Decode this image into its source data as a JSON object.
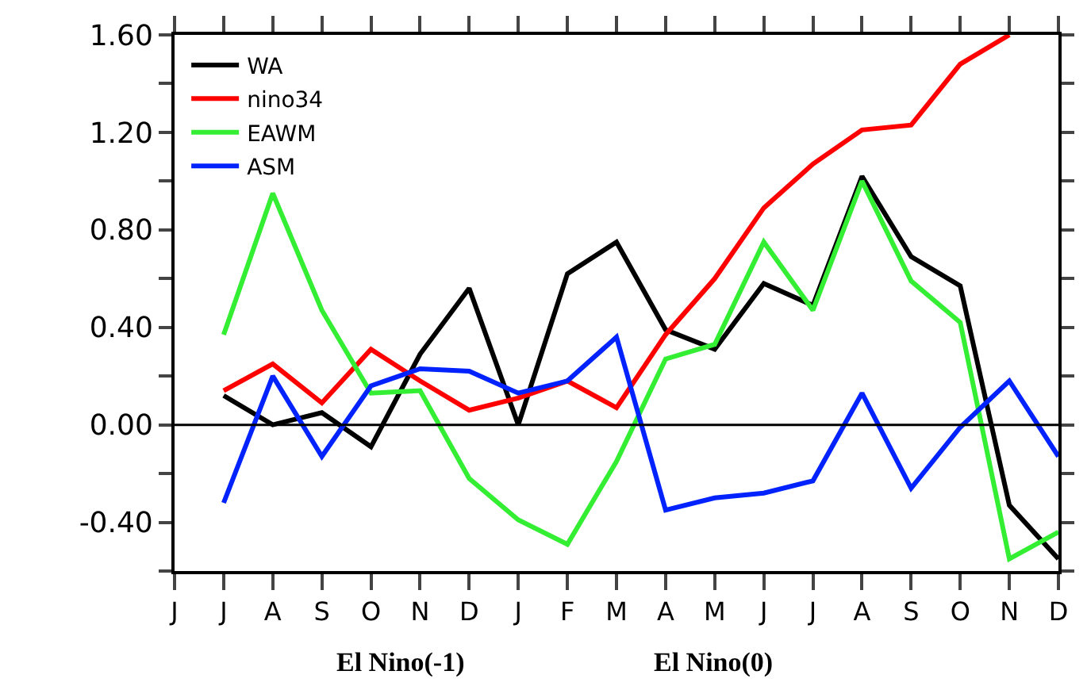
{
  "chart_data": {
    "type": "line",
    "categories": [
      "J",
      "J",
      "A",
      "S",
      "O",
      "N",
      "D",
      "J",
      "F",
      "M",
      "A",
      "M",
      "J",
      "J",
      "A",
      "S",
      "O",
      "N",
      "D"
    ],
    "series": [
      {
        "name": "WA",
        "color": "#000000",
        "values": [
          null,
          0.12,
          0.0,
          0.05,
          -0.09,
          0.29,
          0.56,
          0.0,
          0.62,
          0.75,
          0.39,
          0.31,
          0.58,
          0.49,
          1.02,
          0.69,
          0.57,
          -0.33,
          -0.55
        ]
      },
      {
        "name": "nino34",
        "color": "#ff0000",
        "values": [
          null,
          0.14,
          0.25,
          0.09,
          0.31,
          0.18,
          0.06,
          0.11,
          0.18,
          0.07,
          0.37,
          0.6,
          0.89,
          1.07,
          1.21,
          1.23,
          1.48,
          1.6,
          null
        ]
      },
      {
        "name": "EAWM",
        "color": "#33ee33",
        "values": [
          null,
          0.37,
          0.95,
          0.47,
          0.13,
          0.14,
          -0.22,
          -0.39,
          -0.49,
          -0.15,
          0.27,
          0.33,
          0.75,
          0.47,
          1.0,
          0.59,
          0.42,
          -0.55,
          -0.44
        ]
      },
      {
        "name": "ASM",
        "color": "#0022ff",
        "values": [
          null,
          -0.32,
          0.2,
          -0.13,
          0.16,
          0.23,
          0.22,
          0.13,
          0.18,
          0.36,
          -0.35,
          -0.3,
          -0.28,
          -0.23,
          0.13,
          -0.26,
          -0.01,
          0.18,
          -0.13
        ]
      }
    ],
    "ylim": [
      -0.6,
      1.6
    ],
    "yticks": [
      {
        "value": -0.6,
        "label": null
      },
      {
        "value": -0.4,
        "label": "-0.40"
      },
      {
        "value": -0.2,
        "label": null
      },
      {
        "value": 0,
        "label": "0.00"
      },
      {
        "value": 0.2,
        "label": null
      },
      {
        "value": 0.4,
        "label": "0.40"
      },
      {
        "value": 0.6,
        "label": null
      },
      {
        "value": 0.8,
        "label": "0.80"
      },
      {
        "value": 1.0,
        "label": null
      },
      {
        "value": 1.2,
        "label": "1.20"
      },
      {
        "value": 1.4,
        "label": null
      },
      {
        "value": 1.6,
        "label": "1.60"
      }
    ],
    "ref_lines": [
      {
        "axis": "y",
        "value": 0,
        "color": "#000000"
      }
    ],
    "annotations": [
      "El Nino(-1)",
      "El Nino(0)"
    ],
    "legend": "top left",
    "marker": "none",
    "line_style": "solid"
  }
}
